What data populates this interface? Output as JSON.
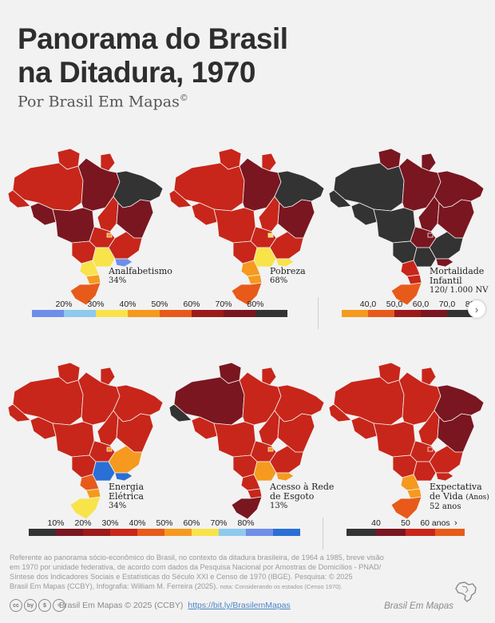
{
  "title_line1": "Panorama do Brasil",
  "title_line2": "na Ditadura, 1970",
  "subtitle": "Por Brasil Em Mapas",
  "subtitle_mark": "©",
  "colors": {
    "black": "#333333",
    "maroon": "#7a1620",
    "darkred": "#9c1a1a",
    "red": "#c8261a",
    "orangered": "#e85a1a",
    "orange": "#f59a1e",
    "yellow": "#f8e34a",
    "blue": "#2a6fd6",
    "lightblue": "#8ec9ee",
    "periwinkle": "#6f8ee8"
  },
  "maps": [
    {
      "id": "analfabetismo",
      "label_lines": [
        "Analfabetismo"
      ],
      "value": "34%",
      "regions": {
        "north": "darkred",
        "northeast": "black",
        "center": "maroon",
        "southeast": "red",
        "south": "orangered",
        "mg": "red",
        "ba": "maroon",
        "sp": "yellow",
        "rj": "periwinkle",
        "df": "orange",
        "ms": "red",
        "mt": "maroon",
        "go": "red",
        "am": "red",
        "pa": "maroon",
        "rr": "red",
        "ap": "red",
        "ac": "red",
        "ro": "maroon",
        "to": "red",
        "pr": "yellow",
        "sc": "orange",
        "rs": "orangered"
      }
    },
    {
      "id": "pobreza",
      "label_lines": [
        "Pobreza"
      ],
      "value": "68%",
      "regions": {
        "north": "red",
        "northeast": "black",
        "center": "red",
        "southeast": "red",
        "south": "orangered",
        "mg": "red",
        "ba": "maroon",
        "sp": "yellow",
        "rj": "yellow",
        "df": "yellow",
        "ms": "red",
        "mt": "red",
        "go": "red",
        "am": "red",
        "pa": "maroon",
        "rr": "red",
        "ap": "red",
        "ac": "red",
        "ro": "red",
        "to": "red",
        "pr": "orange",
        "sc": "orange",
        "rs": "orangered"
      }
    },
    {
      "id": "mortalidade",
      "label_lines": [
        "Mortalidade",
        "Infantil"
      ],
      "value": "120/ 1.000 NV",
      "regions": {
        "north": "maroon",
        "northeast": "maroon",
        "center": "black",
        "southeast": "black",
        "south": "red",
        "mg": "black",
        "ba": "maroon",
        "sp": "black",
        "rj": "maroon",
        "df": "maroon",
        "ms": "black",
        "mt": "black",
        "go": "maroon",
        "am": "black",
        "pa": "maroon",
        "rr": "maroon",
        "ap": "maroon",
        "ac": "black",
        "ro": "black",
        "to": "maroon",
        "pr": "red",
        "sc": "red",
        "rs": "orangered"
      }
    },
    {
      "id": "energia",
      "label_lines": [
        "Energia",
        "Elétrica"
      ],
      "value": "34%",
      "regions": {
        "north": "red",
        "northeast": "red",
        "center": "red",
        "southeast": "orange",
        "south": "yellow",
        "mg": "orange",
        "ba": "red",
        "sp": "blue",
        "rj": "blue",
        "df": "orange",
        "ms": "red",
        "mt": "red",
        "go": "red",
        "am": "red",
        "pa": "red",
        "rr": "red",
        "ap": "red",
        "ac": "red",
        "ro": "red",
        "to": "red",
        "pr": "orangered",
        "sc": "orange",
        "rs": "yellow"
      }
    },
    {
      "id": "esgoto",
      "label_lines": [
        "Acesso à Rede",
        "de Esgoto"
      ],
      "value": "13%",
      "regions": {
        "north": "maroon",
        "northeast": "red",
        "center": "red",
        "southeast": "red",
        "south": "maroon",
        "mg": "red",
        "ba": "red",
        "sp": "orange",
        "rj": "orange",
        "df": "orange",
        "ms": "red",
        "mt": "red",
        "go": "red",
        "am": "maroon",
        "pa": "red",
        "rr": "maroon",
        "ap": "red",
        "ac": "black",
        "ro": "red",
        "to": "red",
        "pr": "red",
        "sc": "red",
        "rs": "maroon"
      }
    },
    {
      "id": "expectativa",
      "label_lines": [
        "Expectativa",
        "de Vida"
      ],
      "label_unit": "(Anos)",
      "value": "52 anos",
      "regions": {
        "north": "red",
        "northeast": "maroon",
        "center": "red",
        "southeast": "red",
        "south": "orangered",
        "mg": "red",
        "ba": "maroon",
        "sp": "red",
        "rj": "red",
        "df": "red",
        "ms": "red",
        "mt": "red",
        "go": "red",
        "am": "red",
        "pa": "red",
        "rr": "red",
        "ap": "red",
        "ac": "red",
        "ro": "red",
        "to": "red",
        "pr": "orange",
        "sc": "orange",
        "rs": "orangered"
      }
    }
  ],
  "legend_pct_top": {
    "labels": [
      "20%",
      "30%",
      "40%",
      "50%",
      "60%",
      "70%",
      "80%"
    ],
    "colors": [
      "periwinkle",
      "lightblue",
      "yellow",
      "orange",
      "orangered",
      "darkred",
      "maroon",
      "black"
    ]
  },
  "legend_mort": {
    "labels": [
      "40,0",
      "50,0",
      "60,0",
      "70,0",
      "80,0"
    ],
    "colors": [
      "orange",
      "orangered",
      "darkred",
      "maroon",
      "black"
    ]
  },
  "legend_pct_bottom": {
    "labels": [
      "10%",
      "20%",
      "30%",
      "40%",
      "50%",
      "60%",
      "70%",
      "80%"
    ],
    "colors": [
      "black",
      "maroon",
      "darkred",
      "red",
      "orangered",
      "orange",
      "yellow",
      "lightblue",
      "periwinkle",
      "blue"
    ]
  },
  "legend_life": {
    "labels": [
      "40",
      "50",
      "60 anos"
    ],
    "arrow": "›",
    "colors": [
      "black",
      "maroon",
      "red",
      "orangered"
    ]
  },
  "footnote": {
    "line1": "Referente ao panorama sócio-econômico do Brasil, no contexto da ditadura brasileira, de 1964 a 1985, breve visão",
    "line2": "em 1970 por unidade federativa, de acordo com dados da Pesquisa Nacional por Amostras de Domicílios - PNAD/",
    "line3": "Síntese dos Indicadores Sociais e Estatísticas do Século XXI e Censo de 1970 (IBGE). Pesquisa: © 2025",
    "line4": "Brasil Em Mapas (CCBY), Infografia: William M. Ferreira (2025).",
    "note": "nota: Considerando os estados (Censo 1970)."
  },
  "license_icons": [
    "cc",
    "by",
    "$",
    "="
  ],
  "copyright": "Brasil Em Mapas © 2025 (CCBY)",
  "link": "https://bit.ly/BrasilemMapas",
  "brand": "Brasil Em Mapas"
}
